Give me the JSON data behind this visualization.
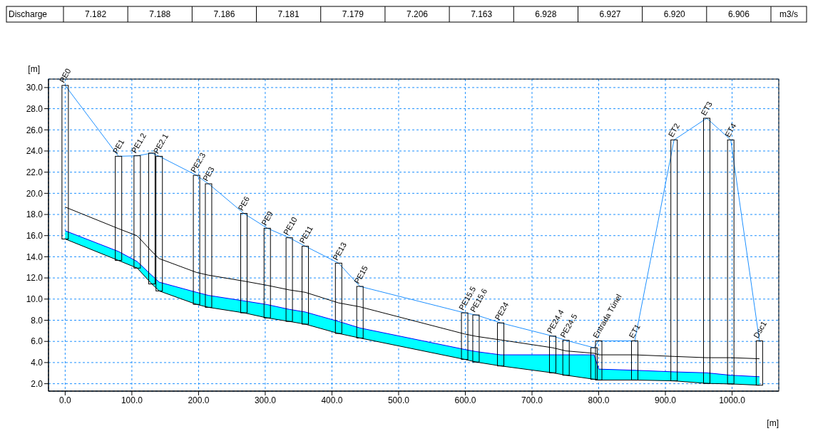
{
  "chart_data": {
    "type": "line",
    "xlabel": "[m]",
    "ylabel": "[m]",
    "xlim": [
      -25,
      1070
    ],
    "ylim": [
      1.3,
      30.8
    ],
    "xticks": [
      {
        "value": 0,
        "label": "0.0"
      },
      {
        "value": 100,
        "label": "100.0"
      },
      {
        "value": 200,
        "label": "200.0"
      },
      {
        "value": 300,
        "label": "300.0"
      },
      {
        "value": 400,
        "label": "400.0"
      },
      {
        "value": 500,
        "label": "500.0"
      },
      {
        "value": 600,
        "label": "600.0"
      },
      {
        "value": 700,
        "label": "700.0"
      },
      {
        "value": 800,
        "label": "800.0"
      },
      {
        "value": 900,
        "label": "900.0"
      },
      {
        "value": 1000,
        "label": "1000.0"
      }
    ],
    "yticks": [
      {
        "value": 2,
        "label": "2.0"
      },
      {
        "value": 4,
        "label": "4.0"
      },
      {
        "value": 6,
        "label": "6.0"
      },
      {
        "value": 8,
        "label": "8.0"
      },
      {
        "value": 10,
        "label": "10.0"
      },
      {
        "value": 12,
        "label": "12.0"
      },
      {
        "value": 14,
        "label": "14.0"
      },
      {
        "value": 16,
        "label": "16.0"
      },
      {
        "value": 18,
        "label": "18.0"
      },
      {
        "value": 20,
        "label": "20.0"
      },
      {
        "value": 22,
        "label": "22.0"
      },
      {
        "value": 24,
        "label": "24.0"
      },
      {
        "value": 26,
        "label": "26.0"
      },
      {
        "value": 28,
        "label": "28.0"
      },
      {
        "value": 30,
        "label": "30.0"
      }
    ],
    "grid": true,
    "x": [
      0,
      80,
      108,
      130,
      141,
      197,
      215,
      268,
      303,
      336,
      360,
      410,
      442,
      599,
      616,
      653,
      731,
      751,
      793,
      800,
      854,
      913,
      962,
      998,
      1041
    ],
    "series": [
      {
        "color": "#000000",
        "values": [
          15.68,
          13.65,
          12.93,
          11.43,
          10.77,
          9.5,
          9.22,
          8.7,
          8.22,
          7.89,
          7.63,
          6.75,
          6.32,
          4.3,
          4.05,
          3.68,
          3.03,
          2.8,
          2.42,
          2.35,
          2.35,
          2.27,
          2.03,
          1.98,
          1.86
        ]
      },
      {
        "color": "#0000ff",
        "values": [
          16.46,
          14.5,
          13.55,
          12.24,
          11.6,
          10.64,
          10.35,
          9.83,
          9.48,
          9.03,
          8.78,
          7.89,
          7.27,
          5.24,
          5.04,
          4.73,
          4.73,
          4.73,
          4.73,
          3.38,
          3.27,
          3.12,
          3.03,
          2.8,
          2.66
        ],
        "upper": [
          16.46,
          14.5,
          13.55,
          12.24,
          11.6,
          10.64,
          10.35,
          9.83,
          9.48,
          9.03,
          8.78,
          7.89,
          7.27,
          5.24,
          5.04,
          4.73,
          4.73,
          4.73,
          4.73,
          3.38,
          3.27,
          3.12,
          3.03,
          2.8,
          2.66
        ],
        "lower": [
          15.68,
          13.65,
          12.93,
          11.43,
          10.77,
          9.5,
          9.22,
          8.7,
          8.22,
          7.89,
          7.63,
          6.75,
          6.32,
          4.3,
          4.05,
          3.68,
          3.03,
          2.8,
          2.42,
          2.35,
          2.35,
          2.27,
          2.03,
          1.98,
          1.86
        ]
      },
      {
        "color": "#000000",
        "values": [
          18.7,
          16.66,
          15.98,
          14.5,
          13.83,
          12.52,
          12.26,
          11.7,
          11.3,
          10.87,
          10.64,
          9.64,
          9.27,
          6.7,
          6.48,
          6.14,
          5.4,
          5.1,
          4.88,
          4.73,
          4.73,
          4.58,
          4.46,
          4.46,
          4.36
        ]
      },
      {
        "color": "#1e90ff",
        "values": [
          30.2,
          23.5,
          23.55,
          23.8,
          23.5,
          21.7,
          20.9,
          18.1,
          16.7,
          15.8,
          15.0,
          13.4,
          11.2,
          8.7,
          8.5,
          7.75,
          6.5,
          6.1,
          5.4,
          6.05,
          6.05,
          25.05,
          27.1,
          25.05,
          6.05
        ]
      },
      {
        "type": "bar",
        "color": "#000000",
        "base": [
          15.68,
          13.65,
          12.93,
          11.43,
          10.77,
          9.5,
          9.22,
          8.7,
          8.22,
          7.89,
          7.63,
          6.75,
          6.32,
          4.3,
          4.05,
          3.68,
          3.03,
          2.8,
          2.42,
          2.35,
          2.35,
          2.27,
          2.03,
          1.98,
          1.86
        ],
        "values": [
          14.52,
          9.85,
          10.62,
          12.37,
          12.73,
          12.2,
          11.68,
          9.4,
          8.48,
          7.91,
          7.37,
          6.65,
          4.88,
          4.4,
          4.45,
          4.07,
          3.47,
          3.3,
          2.98,
          3.7,
          3.7,
          22.78,
          25.07,
          23.07,
          4.19
        ],
        "value_labels": [
          "PE0",
          "PE1",
          "PE1.2",
          null,
          "PE2.1",
          "PE2.3",
          "PE3",
          "PE6",
          "PE9",
          "PE10",
          "PE11",
          "PE13",
          "PE15",
          "PE15.5",
          "PE15.6",
          "PE24",
          "PE24.4",
          "PE24.5",
          null,
          "Entrada Túnel",
          "ET1",
          "ET2",
          "ET3",
          "ET4",
          "Dsc1"
        ]
      }
    ],
    "annotations": [
      "Discharge",
      "7.182",
      "7.188",
      "7.186",
      "7.181",
      "7.179",
      "7.206",
      "7.163",
      "6.928",
      "6.927",
      "6.920",
      "6.906",
      "m3/s"
    ]
  }
}
